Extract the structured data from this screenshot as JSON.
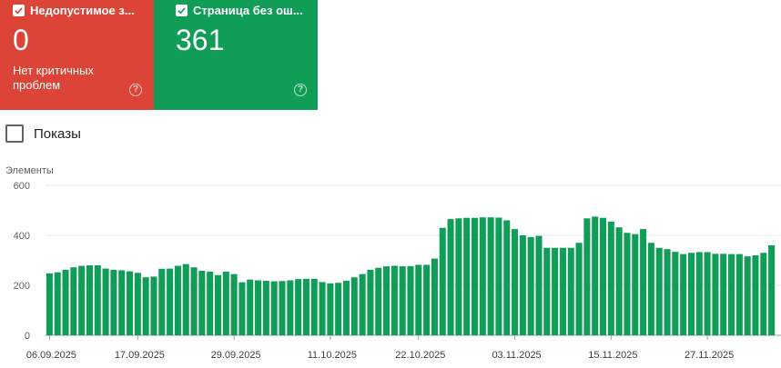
{
  "cards": [
    {
      "label": "Недопустимое з...",
      "value": "0",
      "subtitle_line1": "Нет критичных",
      "subtitle_line2": "проблем",
      "color": "#db4437",
      "checked": true,
      "help_icon": "help-circle-icon"
    },
    {
      "label": "Страница без ош...",
      "value": "361",
      "color": "#0f9d58",
      "checked": true,
      "help_icon": "help-circle-icon"
    }
  ],
  "impressions_toggle": {
    "label": "Показы",
    "checked": false
  },
  "chart_data": {
    "type": "bar",
    "ylabel": "Элементы",
    "ylim": [
      0,
      600
    ],
    "yticks": [
      0,
      200,
      400,
      600
    ],
    "bar_color": "#0f9d58",
    "grid": true,
    "xticks": [
      "06.09.2025",
      "17.09.2025",
      "29.09.2025",
      "11.10.2025",
      "22.10.2025",
      "03.11.2025",
      "15.11.2025",
      "27.11.2025"
    ],
    "xtick_index": [
      0,
      11,
      23,
      35,
      46,
      58,
      70,
      82
    ],
    "values": [
      248,
      252,
      262,
      272,
      278,
      280,
      280,
      267,
      262,
      260,
      256,
      250,
      232,
      235,
      266,
      267,
      278,
      285,
      272,
      258,
      255,
      241,
      255,
      245,
      212,
      223,
      220,
      218,
      216,
      217,
      220,
      225,
      226,
      226,
      213,
      208,
      210,
      218,
      232,
      245,
      262,
      270,
      276,
      278,
      276,
      277,
      282,
      282,
      307,
      430,
      465,
      468,
      470,
      470,
      472,
      472,
      471,
      460,
      425,
      400,
      393,
      398,
      350,
      350,
      350,
      350,
      370,
      468,
      475,
      470,
      455,
      432,
      410,
      405,
      425,
      370,
      350,
      345,
      334,
      325,
      330,
      333,
      333,
      326,
      326,
      325,
      325,
      316,
      320,
      330,
      360
    ]
  }
}
